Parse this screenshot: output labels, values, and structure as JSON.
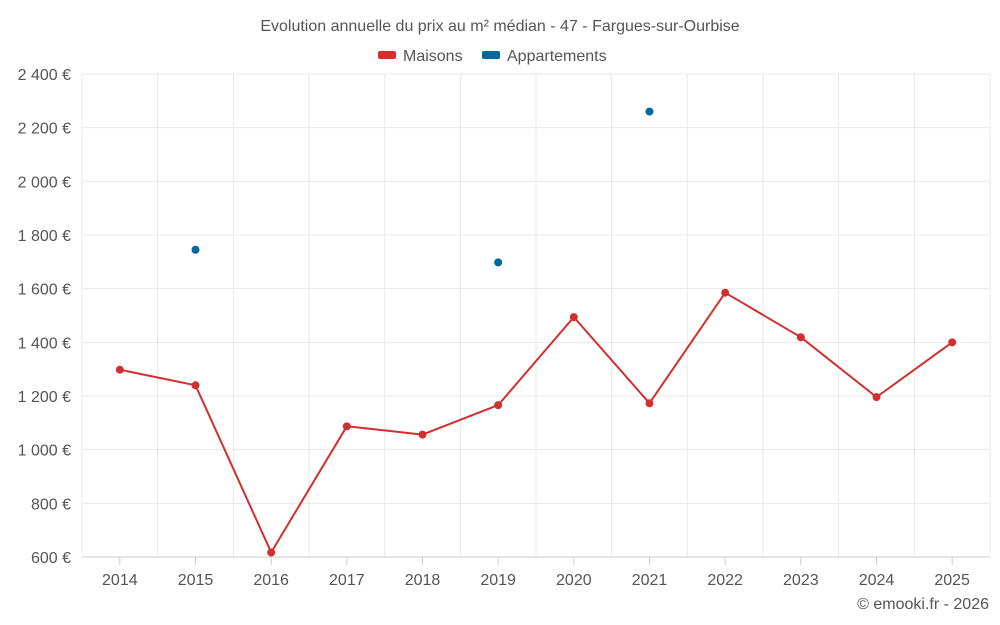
{
  "chart_data": {
    "type": "line",
    "title": "Evolution annuelle du prix au m² médian - 47 - Fargues-sur-Ourbise",
    "categories": [
      "2014",
      "2015",
      "2016",
      "2017",
      "2018",
      "2019",
      "2020",
      "2021",
      "2022",
      "2023",
      "2024",
      "2025"
    ],
    "ylim": [
      600,
      2400
    ],
    "yticks": [
      600,
      800,
      1000,
      1200,
      1400,
      1600,
      1800,
      2000,
      2200,
      2400
    ],
    "ytick_labels": [
      "600 €",
      "800 €",
      "1 000 €",
      "1 200 €",
      "1 400 €",
      "1 600 €",
      "1 800 €",
      "2 000 €",
      "2 200 €",
      "2 400 €"
    ],
    "grid": true,
    "legend_position": "top-center",
    "series": [
      {
        "name": "Maisons",
        "color": "#d32f2f",
        "values": [
          1298,
          1240,
          617,
          1087,
          1056,
          1166,
          1494,
          1173,
          1585,
          1419,
          1196,
          1400
        ]
      },
      {
        "name": "Appartements",
        "color": "#01699e",
        "values": [
          null,
          1745,
          null,
          null,
          null,
          1698,
          null,
          2260,
          null,
          null,
          null,
          null
        ]
      }
    ],
    "credit": "© emooki.fr - 2026"
  }
}
